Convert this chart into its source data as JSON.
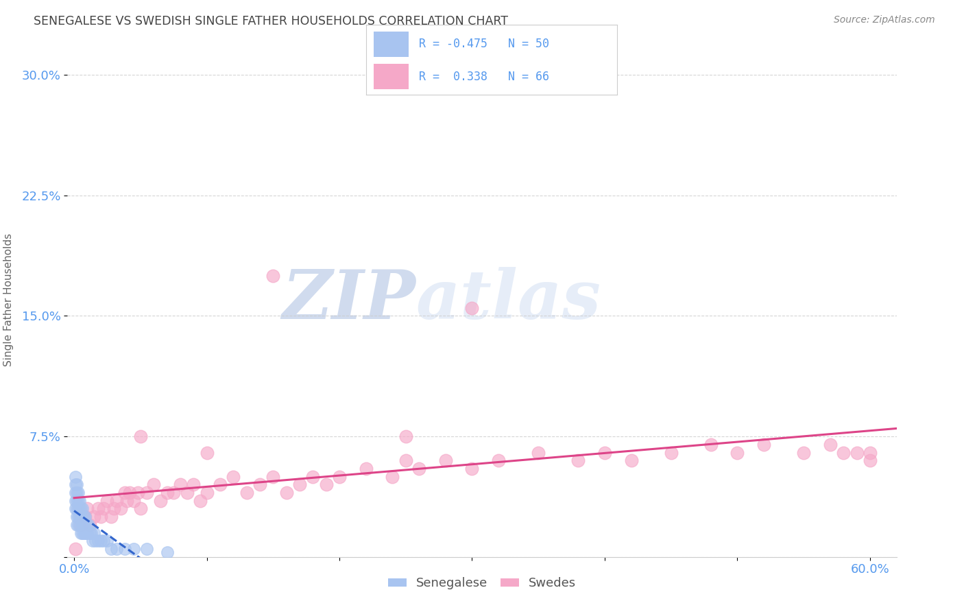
{
  "title": "SENEGALESE VS SWEDISH SINGLE FATHER HOUSEHOLDS CORRELATION CHART",
  "source": "Source: ZipAtlas.com",
  "ylabel": "Single Father Households",
  "xlim": [
    -0.005,
    0.62
  ],
  "ylim": [
    0.0,
    0.32
  ],
  "yticks": [
    0.0,
    0.075,
    0.15,
    0.225,
    0.3
  ],
  "ytick_labels": [
    "",
    "7.5%",
    "15.0%",
    "22.5%",
    "30.0%"
  ],
  "xticks": [
    0.0,
    0.1,
    0.2,
    0.3,
    0.4,
    0.5,
    0.6
  ],
  "xtick_labels": [
    "0.0%",
    "",
    "",
    "",
    "",
    "",
    "60.0%"
  ],
  "senegalese_R": -0.475,
  "senegalese_N": 50,
  "swedes_R": 0.338,
  "swedes_N": 66,
  "senegalese_color": "#a8c4f0",
  "swedes_color": "#f5a8c8",
  "senegalese_edge_color": "#6090d0",
  "swedes_edge_color": "#e080a8",
  "senegalese_line_color": "#3366cc",
  "swedes_line_color": "#dd4488",
  "title_color": "#444444",
  "axis_tick_color": "#5599ee",
  "source_color": "#888888",
  "background_color": "#ffffff",
  "watermark_color": "#dce8f8",
  "grid_color": "#cccccc",
  "legend_color": "#5599ee",
  "sen_x": [
    0.001,
    0.001,
    0.001,
    0.001,
    0.001,
    0.002,
    0.002,
    0.002,
    0.002,
    0.002,
    0.002,
    0.003,
    0.003,
    0.003,
    0.003,
    0.003,
    0.004,
    0.004,
    0.004,
    0.004,
    0.005,
    0.005,
    0.005,
    0.006,
    0.006,
    0.006,
    0.007,
    0.007,
    0.007,
    0.008,
    0.008,
    0.009,
    0.009,
    0.01,
    0.011,
    0.012,
    0.013,
    0.014,
    0.015,
    0.016,
    0.018,
    0.02,
    0.022,
    0.025,
    0.028,
    0.032,
    0.038,
    0.045,
    0.055,
    0.07
  ],
  "sen_y": [
    0.03,
    0.035,
    0.04,
    0.045,
    0.05,
    0.02,
    0.025,
    0.03,
    0.035,
    0.04,
    0.045,
    0.02,
    0.025,
    0.03,
    0.035,
    0.04,
    0.02,
    0.025,
    0.03,
    0.035,
    0.015,
    0.025,
    0.03,
    0.015,
    0.02,
    0.03,
    0.015,
    0.02,
    0.025,
    0.015,
    0.025,
    0.015,
    0.02,
    0.015,
    0.02,
    0.015,
    0.015,
    0.01,
    0.015,
    0.01,
    0.01,
    0.01,
    0.01,
    0.01,
    0.005,
    0.005,
    0.005,
    0.005,
    0.005,
    0.003
  ],
  "swe_x": [
    0.001,
    0.005,
    0.008,
    0.01,
    0.012,
    0.015,
    0.018,
    0.02,
    0.022,
    0.025,
    0.028,
    0.03,
    0.032,
    0.035,
    0.038,
    0.04,
    0.042,
    0.045,
    0.048,
    0.05,
    0.055,
    0.06,
    0.065,
    0.07,
    0.075,
    0.08,
    0.085,
    0.09,
    0.095,
    0.1,
    0.11,
    0.12,
    0.13,
    0.14,
    0.15,
    0.16,
    0.17,
    0.18,
    0.19,
    0.2,
    0.22,
    0.24,
    0.26,
    0.28,
    0.3,
    0.32,
    0.35,
    0.38,
    0.4,
    0.42,
    0.45,
    0.48,
    0.5,
    0.52,
    0.55,
    0.57,
    0.58,
    0.59,
    0.6,
    0.6,
    0.15,
    0.3,
    0.25,
    0.25,
    0.05,
    0.1
  ],
  "swe_y": [
    0.005,
    0.02,
    0.025,
    0.03,
    0.02,
    0.025,
    0.03,
    0.025,
    0.03,
    0.035,
    0.025,
    0.03,
    0.035,
    0.03,
    0.04,
    0.035,
    0.04,
    0.035,
    0.04,
    0.03,
    0.04,
    0.045,
    0.035,
    0.04,
    0.04,
    0.045,
    0.04,
    0.045,
    0.035,
    0.04,
    0.045,
    0.05,
    0.04,
    0.045,
    0.05,
    0.04,
    0.045,
    0.05,
    0.045,
    0.05,
    0.055,
    0.05,
    0.055,
    0.06,
    0.055,
    0.06,
    0.065,
    0.06,
    0.065,
    0.06,
    0.065,
    0.07,
    0.065,
    0.07,
    0.065,
    0.07,
    0.065,
    0.065,
    0.065,
    0.06,
    0.175,
    0.155,
    0.075,
    0.06,
    0.075,
    0.065
  ]
}
